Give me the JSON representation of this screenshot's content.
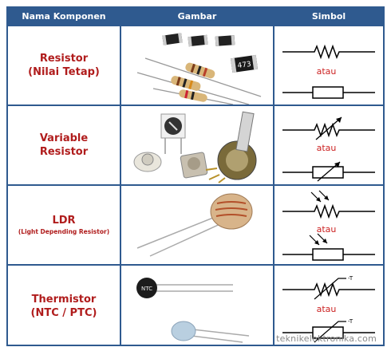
{
  "headers": {
    "name": "Nama Komponen",
    "image": "Gambar",
    "symbol": "Simbol"
  },
  "rows": [
    {
      "name_line1": "Resistor",
      "name_line2": "(Nilai Tetap)",
      "atau": "atau",
      "chip_label": "473"
    },
    {
      "name_line1": "Variable",
      "name_line2": "Resistor",
      "atau": "atau"
    },
    {
      "name_line1": "LDR",
      "name_line2": "(Light Depending Resistor)",
      "atau": "atau"
    },
    {
      "name_line1": "Thermistor",
      "name_line2": "(NTC / PTC)",
      "atau": "atau",
      "temp_label": "-T",
      "part_label": "NTC"
    }
  ],
  "watermark": "teknikelektronika.com",
  "colors": {
    "border": "#2f5a8f",
    "name_text": "#b01c1c",
    "atau_text": "#cc2222"
  }
}
